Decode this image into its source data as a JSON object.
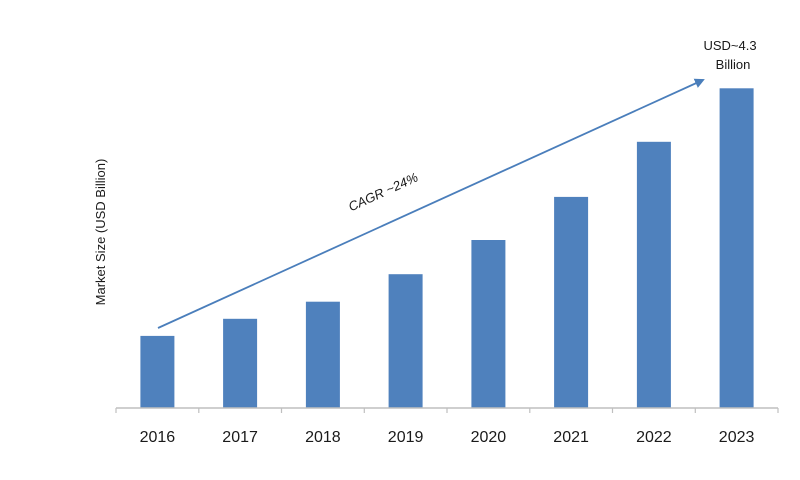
{
  "chart_data": {
    "type": "bar",
    "title": "",
    "xlabel": "",
    "ylabel": "Market Size (USD Billion)",
    "categories": [
      "2016",
      "2017",
      "2018",
      "2019",
      "2020",
      "2021",
      "2022",
      "2023"
    ],
    "values": [
      0.97,
      1.2,
      1.43,
      1.8,
      2.26,
      2.84,
      3.58,
      4.3
    ],
    "ylim": [
      0,
      4.6
    ],
    "grid": false,
    "legend": "none",
    "bar_color": "#4f81bd",
    "arrow_color": "#4a7ebb",
    "annotations": {
      "last_bar_value": "USD~4.3 Billion",
      "last_bar_value_line1": "USD~4.3",
      "last_bar_value_line2": "Billion",
      "trend_label": "CAGR ~24%"
    }
  }
}
